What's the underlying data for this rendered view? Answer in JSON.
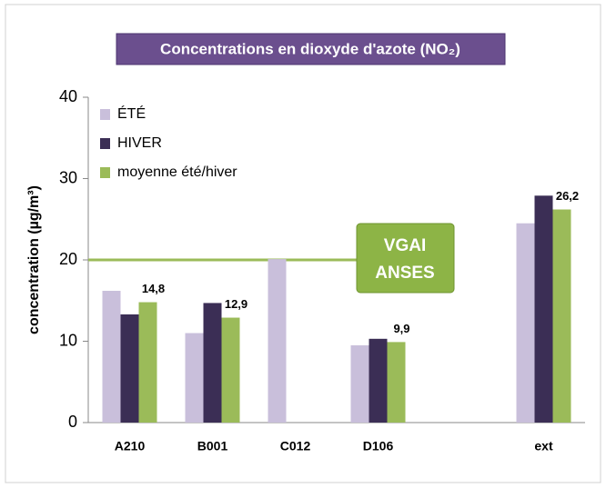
{
  "chart_data": {
    "type": "bar",
    "title": "Concentrations en dioxyde d'azote (NO₂)",
    "y_label": "concentration (µg/m³)",
    "categories": [
      "A210",
      "B001",
      "C012",
      "D106",
      null,
      "ext"
    ],
    "series": [
      {
        "name": "ÉTÉ",
        "color": "#c9bfdb",
        "values": [
          16.2,
          11.0,
          20.1,
          9.5,
          null,
          24.5
        ]
      },
      {
        "name": "HIVER",
        "color": "#3b2e55",
        "values": [
          13.3,
          14.7,
          null,
          10.3,
          null,
          27.9
        ]
      },
      {
        "name": "moyenne été/hiver",
        "color": "#9bbb59",
        "values": [
          14.8,
          12.9,
          null,
          9.9,
          null,
          26.2
        ],
        "value_labels": [
          "14,8",
          "12,9",
          null,
          "9,9",
          null,
          "26,2"
        ]
      }
    ],
    "ylim": [
      0,
      40
    ],
    "yticks": [
      0,
      10,
      20,
      30,
      40
    ],
    "grid": false,
    "legend": "top-left",
    "reference_line": {
      "value": 20,
      "color": "#9bbb59"
    },
    "annotation": [
      "VGAI",
      "ANSES"
    ]
  }
}
